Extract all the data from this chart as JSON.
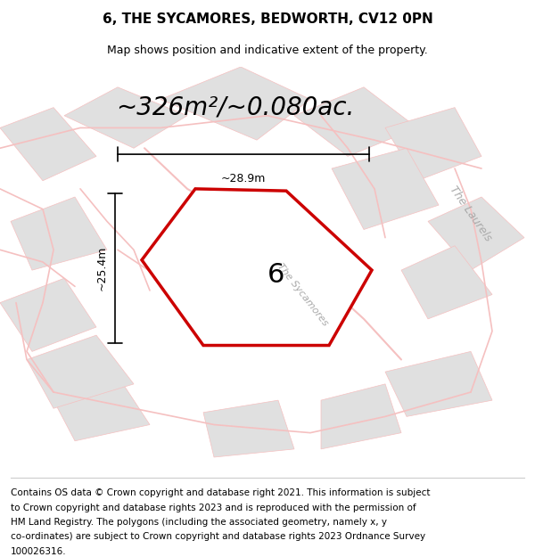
{
  "title": "6, THE SYCAMORES, BEDWORTH, CV12 0PN",
  "subtitle": "Map shows position and indicative extent of the property.",
  "area_text": "~326m²/~0.080ac.",
  "width_label": "~28.9m",
  "height_label": "~25.4m",
  "plot_number": "6",
  "street_label": "The Sycamores",
  "laurels_label": "The Laurels",
  "footer_lines": [
    "Contains OS data © Crown copyright and database right 2021. This information is subject",
    "to Crown copyright and database rights 2023 and is reproduced with the permission of",
    "HM Land Registry. The polygons (including the associated geometry, namely x, y",
    "co-ordinates) are subject to Crown copyright and database rights 2023 Ordnance Survey",
    "100026316."
  ],
  "bg_color": "#f5f5f5",
  "plot_color": "#cc0000",
  "road_color": "#f5c0c0",
  "building_color": "#e0e0e0",
  "title_fontsize": 11,
  "subtitle_fontsize": 9,
  "area_fontsize": 20,
  "footer_fontsize": 7.5
}
